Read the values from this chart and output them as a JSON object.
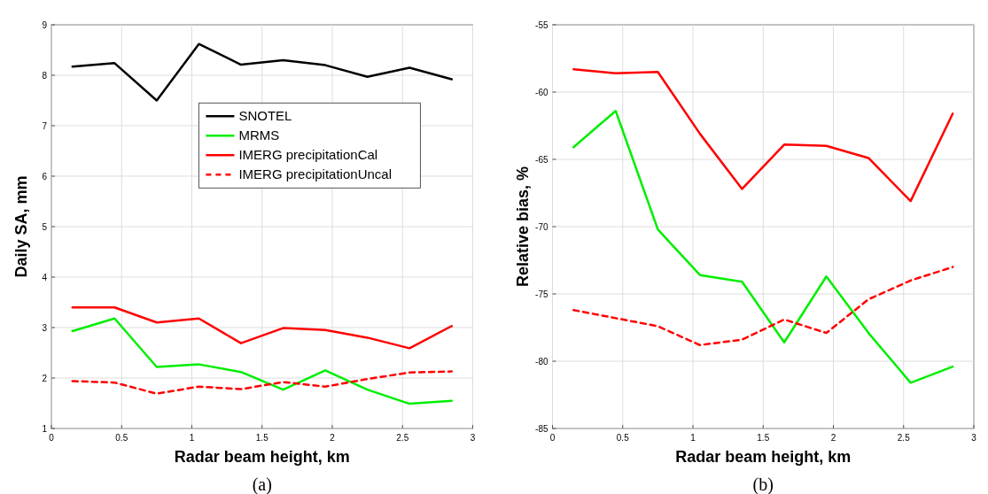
{
  "chart_data": [
    {
      "type": "line",
      "title": "(a)",
      "xlabel": "Radar beam height, km",
      "ylabel": "Daily SA, mm",
      "x": [
        0.15,
        0.45,
        0.75,
        1.05,
        1.35,
        1.65,
        1.95,
        2.25,
        2.55,
        2.85
      ],
      "xlim": [
        0,
        3
      ],
      "xticks": [
        0,
        0.5,
        1,
        1.5,
        2,
        2.5,
        3
      ],
      "ylim": [
        1,
        9
      ],
      "yticks": [
        1,
        2,
        3,
        4,
        5,
        6,
        7,
        8,
        9
      ],
      "grid": true,
      "legend": "right",
      "series": [
        {
          "name": "SNOTEL",
          "color": "#000000",
          "values": [
            8.17,
            8.24,
            7.5,
            8.62,
            8.21,
            8.3,
            8.2,
            7.97,
            8.15,
            7.92
          ]
        },
        {
          "name": "MRMS",
          "color": "#00ee00",
          "values": [
            2.93,
            3.18,
            2.22,
            2.27,
            2.12,
            1.77,
            2.15,
            1.77,
            1.49,
            1.55
          ]
        },
        {
          "name": "IMERG precipitationCal",
          "color": "#ff0000",
          "values": [
            3.4,
            3.4,
            3.1,
            3.18,
            2.69,
            2.99,
            2.95,
            2.8,
            2.59,
            3.03
          ]
        },
        {
          "name": "IMERG precipitationUncal",
          "color": "#ff0000",
          "line_style": "dashed",
          "values": [
            1.94,
            1.91,
            1.69,
            1.83,
            1.78,
            1.92,
            1.83,
            1.98,
            2.11,
            2.13
          ]
        }
      ]
    },
    {
      "type": "line",
      "title": "(b)",
      "xlabel": "Radar beam height, km",
      "ylabel": "Relative bias, %",
      "x": [
        0.15,
        0.45,
        0.75,
        1.05,
        1.35,
        1.65,
        1.95,
        2.25,
        2.55,
        2.85
      ],
      "xlim": [
        0,
        3
      ],
      "xticks": [
        0,
        0.5,
        1,
        1.5,
        2,
        2.5,
        3
      ],
      "ylim": [
        -85,
        -55
      ],
      "yticks": [
        -85,
        -80,
        -75,
        -70,
        -65,
        -60,
        -55
      ],
      "grid": true,
      "series": [
        {
          "color": "#00ee00",
          "values": [
            -64.1,
            -61.4,
            -70.2,
            -73.6,
            -74.1,
            -78.6,
            -73.7,
            -77.9,
            -81.6,
            -80.4
          ]
        },
        {
          "color": "#ff0000",
          "values": [
            -58.3,
            -58.6,
            -58.5,
            -63.1,
            -67.2,
            -63.9,
            -64.0,
            -64.9,
            -68.1,
            -61.6
          ]
        },
        {
          "color": "#ff0000",
          "line_style": "dashed",
          "values": [
            -76.2,
            -76.8,
            -77.4,
            -78.8,
            -78.4,
            -76.9,
            -77.9,
            -75.4,
            -74.0,
            -73.0
          ]
        }
      ]
    }
  ]
}
